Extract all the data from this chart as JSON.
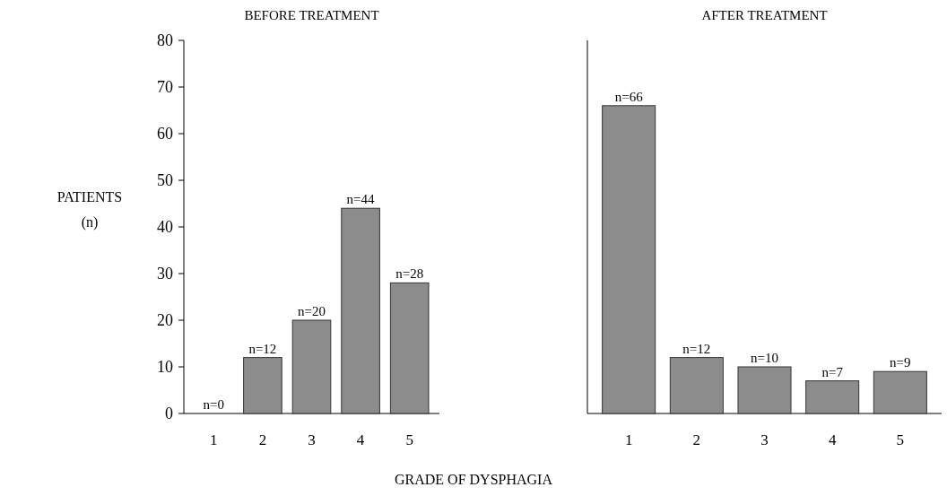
{
  "chart_data": [
    {
      "type": "bar",
      "title": "BEFORE TREATMENT",
      "ylabel": "PATIENTS (n)",
      "xlabel": "GRADE OF DYSPHAGIA",
      "categories": [
        "1",
        "2",
        "3",
        "4",
        "5"
      ],
      "values": [
        0,
        12,
        20,
        44,
        28
      ],
      "value_labels": [
        "n=0",
        "n=12",
        "n=20",
        "n=44",
        "n=28"
      ],
      "color": "#8c8c8c",
      "ylim": [
        0,
        80
      ],
      "yticks": [
        0,
        10,
        20,
        30,
        40,
        50,
        60,
        70,
        80
      ]
    },
    {
      "type": "bar",
      "title": "AFTER TREATMENT",
      "categories": [
        "1",
        "2",
        "3",
        "4",
        "5"
      ],
      "values": [
        66,
        12,
        10,
        7,
        9
      ],
      "value_labels": [
        "n=66",
        "n=12",
        "n=10",
        "n=7",
        "n=9"
      ],
      "color": "#8c8c8c",
      "ylim": [
        0,
        80
      ],
      "tick_labels": "x"
    }
  ]
}
